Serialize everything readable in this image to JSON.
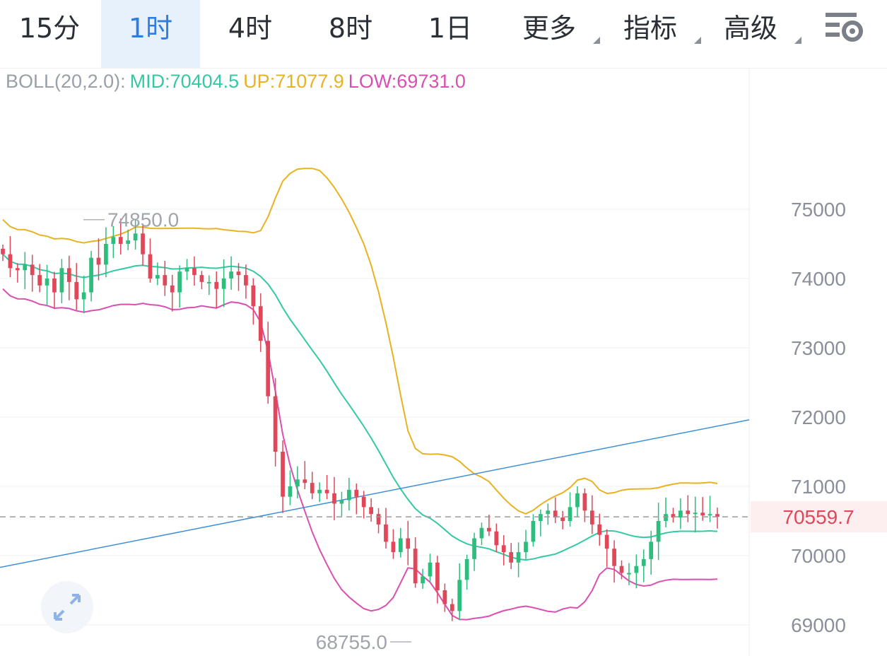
{
  "tabs": [
    {
      "label": "15分",
      "active": false
    },
    {
      "label": "1时",
      "active": true
    },
    {
      "label": "4时",
      "active": false
    },
    {
      "label": "8时",
      "active": false
    },
    {
      "label": "1日",
      "active": false
    },
    {
      "label": "更多",
      "active": false,
      "menu": true
    },
    {
      "label": "指标",
      "active": false,
      "menu": true
    },
    {
      "label": "高级",
      "active": false,
      "menu": true
    }
  ],
  "icons": {
    "settings": "chart-settings-gear-icon",
    "expand": "fullscreen-expand-icon"
  },
  "indicator": {
    "name": "BOLL(20,2.0):",
    "mid": "MID:70404.5",
    "up": "UP:71077.9",
    "low": "LOW:69731.0"
  },
  "colors": {
    "up_candle": "#2dbd7d",
    "down_candle": "#e0485a",
    "mid_line": "#33c9a4",
    "upper_band": "#e8b322",
    "lower_band": "#d94fb2",
    "trend_line": "#3f8fd6",
    "active_tab": "#2f7de1",
    "price_label": "#e0485a"
  },
  "chart_data": {
    "type": "candlestick",
    "interval": "1时",
    "y_axis": {
      "ticks": [
        75000,
        74000,
        73000,
        72000,
        71000,
        70000,
        69000
      ],
      "labels": [
        "75000",
        "74000",
        "73000",
        "72000",
        "71000",
        "70000",
        "69000"
      ]
    },
    "current_price": 70559.7,
    "current_price_label": "70559.7",
    "max_marker": {
      "value": 74850.0,
      "label": "74850.0"
    },
    "min_marker": {
      "value": 68755.0,
      "label": "68755.0"
    },
    "trendline": {
      "start": 69830,
      "end": 71960
    },
    "series_closes": [
      74350,
      74150,
      74120,
      74200,
      74050,
      73900,
      74000,
      73800,
      74150,
      73950,
      73700,
      73800,
      74300,
      74200,
      74500,
      74600,
      74500,
      74550,
      74650,
      74350,
      74000,
      74050,
      73900,
      73800,
      74100,
      74150,
      74050,
      73950,
      73950,
      73850,
      74000,
      74100,
      74050,
      73900,
      73600,
      73100,
      72300,
      71500,
      70850,
      71000,
      71100,
      71050,
      70900,
      70950,
      70900,
      70750,
      70800,
      70950,
      70850,
      70700,
      70600,
      70450,
      70200,
      70050,
      70250,
      70100,
      69600,
      69700,
      69900,
      69500,
      69300,
      69200,
      69650,
      69950,
      70250,
      70400,
      70350,
      70150,
      70050,
      69900,
      70050,
      70200,
      70500,
      70600,
      70650,
      70550,
      70500,
      70700,
      70900,
      70650,
      70450,
      70300,
      70100,
      69850,
      69750,
      69750,
      69850,
      69950,
      70200,
      70500,
      70600,
      70550,
      70650,
      70600,
      70620,
      70580,
      70600,
      70560
    ]
  }
}
